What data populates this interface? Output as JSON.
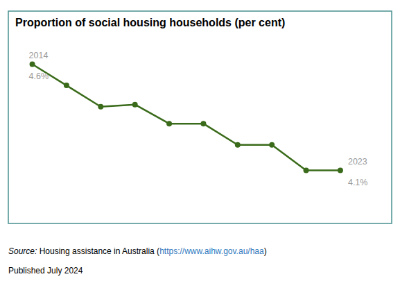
{
  "chart_data": {
    "type": "line",
    "title": "Proportion of social housing households (per cent)",
    "x": [
      2014,
      2015,
      2016,
      2017,
      2018,
      2019,
      2020,
      2021,
      2022,
      2023
    ],
    "values": [
      4.6,
      4.5,
      4.4,
      4.41,
      4.32,
      4.32,
      4.22,
      4.22,
      4.1,
      4.1
    ],
    "value_labels": [
      "4.6%",
      null,
      null,
      null,
      null,
      null,
      null,
      null,
      null,
      "4.1%"
    ],
    "data_labels": true,
    "color": "#3a6b1a",
    "marker": "circle",
    "xlim": [
      2013.3,
      2024.5
    ],
    "ylim": [
      3.85,
      4.85
    ],
    "tick_labels": false,
    "grid": false,
    "annotations": [
      [
        "Source:",
        " Housing assistance in Australia (",
        "https://www.aihw.gov.au/haa",
        ")"
      ],
      [
        "Published July 2024"
      ]
    ]
  }
}
